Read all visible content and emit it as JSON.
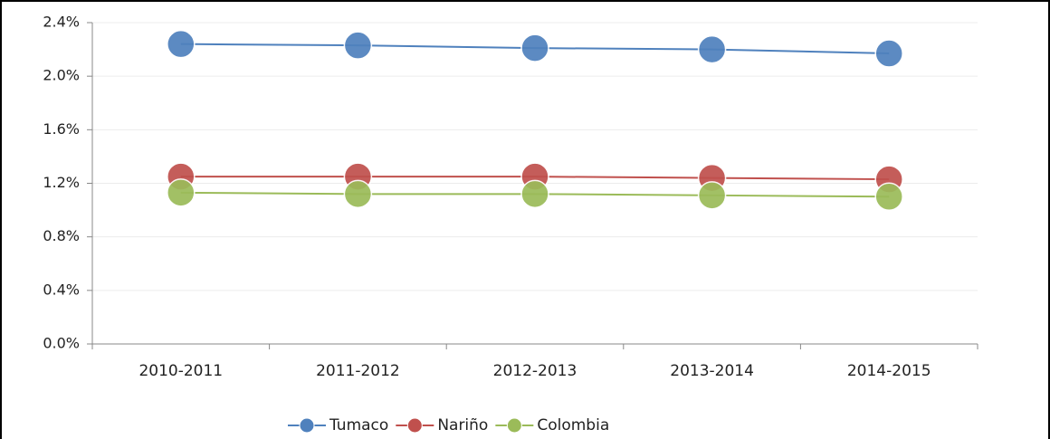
{
  "chart_data": {
    "type": "line",
    "categories": [
      "2010-2011",
      "2011-2012",
      "2012-2013",
      "2013-2014",
      "2014-2015"
    ],
    "series": [
      {
        "name": "Tumaco",
        "color": "#4f81bd",
        "values": [
          2.24,
          2.23,
          2.21,
          2.2,
          2.17
        ]
      },
      {
        "name": "Nariño",
        "color": "#c0504d",
        "values": [
          1.25,
          1.25,
          1.25,
          1.24,
          1.23
        ]
      },
      {
        "name": "Colombia",
        "color": "#9bbb59",
        "values": [
          1.13,
          1.12,
          1.12,
          1.11,
          1.1
        ]
      }
    ],
    "ylim": [
      0,
      2.4
    ],
    "yticks": [
      {
        "value": 0,
        "label": "0.0%"
      },
      {
        "value": 0.4,
        "label": "0.4%"
      },
      {
        "value": 0.8,
        "label": "0.8%"
      },
      {
        "value": 1.2,
        "label": "1.2%"
      },
      {
        "value": 1.6,
        "label": "1.6%"
      },
      {
        "value": 2.0,
        "label": "2.0%"
      },
      {
        "value": 2.4,
        "label": "2.4%"
      }
    ],
    "grid": true,
    "legend": "bottom"
  }
}
